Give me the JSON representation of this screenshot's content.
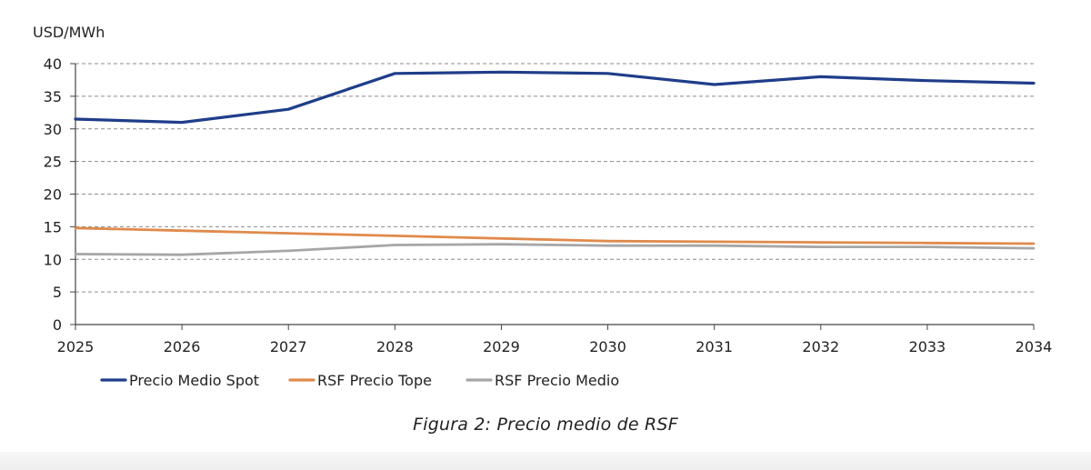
{
  "chart_data": {
    "type": "line",
    "title": "",
    "xlabel": "",
    "ylabel": "USD/MWh",
    "x": [
      "2025",
      "2026",
      "2027",
      "2028",
      "2029",
      "2030",
      "2031",
      "2032",
      "2033",
      "2034"
    ],
    "ylim": [
      0,
      40
    ],
    "yticks": [
      0,
      5,
      10,
      15,
      20,
      25,
      30,
      35,
      40
    ],
    "grid": true,
    "legend_position": "bottom-left",
    "series": [
      {
        "name": "Precio Medio Spot",
        "color": "#1f3d8a",
        "values": [
          31.5,
          31.0,
          33.0,
          38.5,
          38.7,
          38.5,
          36.8,
          38.0,
          37.4,
          37.0
        ]
      },
      {
        "name": "RSF Precio Tope",
        "color": "#e08a4c",
        "values": [
          14.8,
          14.4,
          14.0,
          13.6,
          13.2,
          12.8,
          12.7,
          12.6,
          12.5,
          12.4
        ]
      },
      {
        "name": "RSF Precio Medio",
        "color": "#a6a6a6",
        "values": [
          10.8,
          10.7,
          11.3,
          12.2,
          12.3,
          12.1,
          12.1,
          11.9,
          11.9,
          11.7
        ]
      }
    ]
  },
  "caption": "Figura 2: Precio medio de RSF"
}
